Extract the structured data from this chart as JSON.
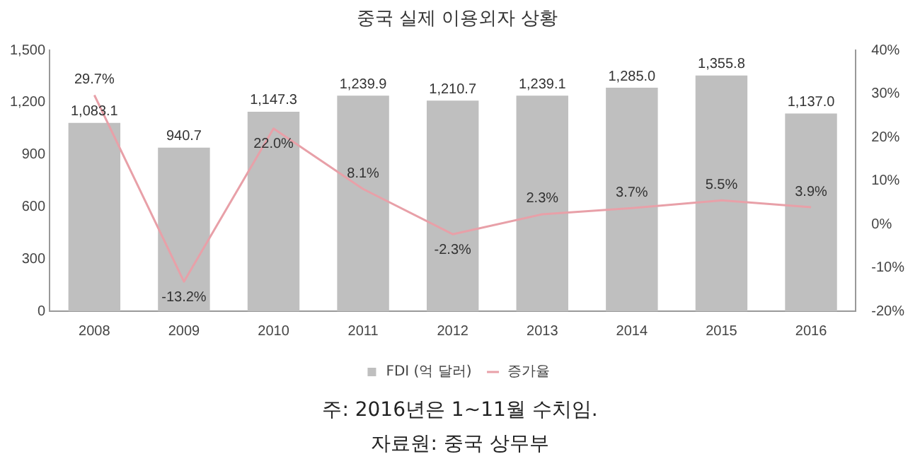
{
  "chart_data": {
    "type": "bar",
    "title": "중국 실제 이용외자 상황",
    "categories": [
      "2008",
      "2009",
      "2010",
      "2011",
      "2012",
      "2013",
      "2014",
      "2015",
      "2016"
    ],
    "series": [
      {
        "name": "FDI (억 달러)",
        "color": "#bfbfbf",
        "values": [
          1083.1,
          940.7,
          1147.3,
          1239.9,
          1210.7,
          1239.1,
          1285.0,
          1355.8,
          1137.0
        ],
        "value_labels": [
          "1,083.1",
          "940.7",
          "1,147.3",
          "1,239.9",
          "1,210.7",
          "1,239.1",
          "1,285.0",
          "1,355.8",
          "1,137.0"
        ]
      },
      {
        "name": "증가율",
        "type": "line",
        "axis": "y2",
        "color": "#e8a0a8",
        "values": [
          29.7,
          -13.2,
          22.0,
          8.1,
          -2.3,
          2.3,
          3.7,
          5.5,
          3.9
        ],
        "value_labels": [
          "29.7%",
          "-13.2%",
          "22.0%",
          "8.1%",
          "-2.3%",
          "2.3%",
          "3.7%",
          "5.5%",
          "3.9%"
        ]
      }
    ],
    "ylim": [
      0,
      1500
    ],
    "yticks": [
      0,
      300,
      600,
      900,
      {
        "value": 1200,
        "label": "1,200"
      },
      {
        "value": 1500,
        "label": "1,500"
      }
    ],
    "y2lim": [
      -20,
      40
    ],
    "y2ticks": [
      {
        "value": -20,
        "label": "-20%"
      },
      {
        "value": -10,
        "label": "-10%"
      },
      {
        "value": 0,
        "label": "0%"
      },
      {
        "value": 10,
        "label": "10%"
      },
      {
        "value": 20,
        "label": "20%"
      },
      {
        "value": 30,
        "label": "30%"
      },
      {
        "value": 40,
        "label": "40%"
      }
    ],
    "grid": false,
    "legend": "bottom",
    "marker": "none",
    "annotations": [
      "주: 2016년은 1~11월 수치임.",
      "자료원: 중국 상무부"
    ]
  }
}
